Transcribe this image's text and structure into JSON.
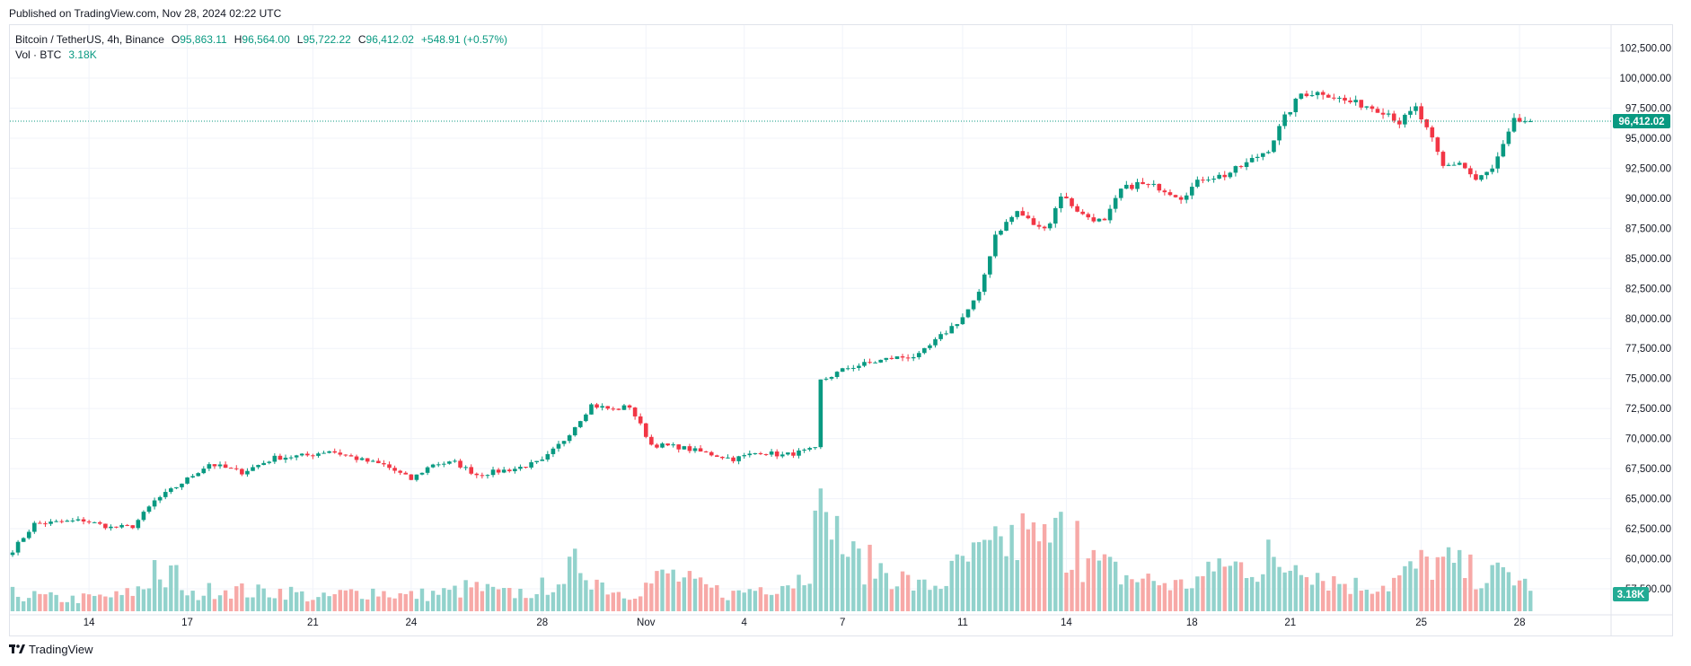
{
  "published": "Published on TradingView.com, Nov 28, 2024 02:22 UTC",
  "legend": {
    "symbol": "Bitcoin / TetherUS, 4h, Binance",
    "o_label": "O",
    "o_value": "95,863.11",
    "h_label": "H",
    "h_value": "96,564.00",
    "l_label": "L",
    "l_value": "95,722.22",
    "c_label": "C",
    "c_value": "96,412.02",
    "change": "+548.91 (+0.57%)",
    "vol_label": "Vol · BTC",
    "vol_value": "3.18K"
  },
  "footer": {
    "brand": "TradingView"
  },
  "colors": {
    "up": "#089981",
    "down": "#f23645",
    "vol_up": "#92d2cc",
    "vol_down": "#f7a9a7",
    "grid": "#f0f3fa"
  },
  "chart_data": {
    "type": "candlestick",
    "interval": "4h",
    "y_axis_ticks": [
      "102,500.00",
      "100,000.00",
      "97,500.00",
      "95,000.00",
      "92,500.00",
      "90,000.00",
      "87,500.00",
      "85,000.00",
      "82,500.00",
      "80,000.00",
      "77,500.00",
      "75,000.00",
      "72,500.00",
      "70,000.00",
      "67,500.00",
      "65,000.00",
      "62,500.00",
      "60,000.00",
      "57,500.00"
    ],
    "y_tick_values": [
      102500,
      100000,
      97500,
      95000,
      92500,
      90000,
      87500,
      85000,
      82500,
      80000,
      77500,
      75000,
      72500,
      70000,
      67500,
      65000,
      62500,
      60000,
      57500
    ],
    "ylim": [
      56500,
      104000
    ],
    "x_axis_ticks": [
      "14",
      "17",
      "21",
      "24",
      "28",
      "Nov",
      "4",
      "7",
      "11",
      "14",
      "18",
      "21",
      "25",
      "28"
    ],
    "x_tick_bars": [
      14,
      32,
      55,
      73,
      97,
      116,
      134,
      152,
      174,
      193,
      216,
      234,
      258,
      276
    ],
    "last_price_label": "96,412.02",
    "last_price": 96412.02,
    "last_volume_label": "3.18K",
    "price_anchors": [
      [
        0,
        60700
      ],
      [
        4,
        62900
      ],
      [
        13,
        63200
      ],
      [
        18,
        62600
      ],
      [
        22,
        62700
      ],
      [
        26,
        64800
      ],
      [
        30,
        66000
      ],
      [
        36,
        67900
      ],
      [
        42,
        67200
      ],
      [
        48,
        68400
      ],
      [
        54,
        68600
      ],
      [
        58,
        69000
      ],
      [
        64,
        68200
      ],
      [
        68,
        67800
      ],
      [
        73,
        66600
      ],
      [
        77,
        67900
      ],
      [
        81,
        68000
      ],
      [
        85,
        67000
      ],
      [
        92,
        67500
      ],
      [
        97,
        68100
      ],
      [
        101,
        69900
      ],
      [
        106,
        72800
      ],
      [
        110,
        72400
      ],
      [
        113,
        72700
      ],
      [
        117,
        69500
      ],
      [
        122,
        69300
      ],
      [
        127,
        68800
      ],
      [
        132,
        68300
      ],
      [
        137,
        68900
      ],
      [
        141,
        68600
      ],
      [
        147,
        69100
      ],
      [
        148,
        74800
      ],
      [
        153,
        75900
      ],
      [
        157,
        76300
      ],
      [
        161,
        76700
      ],
      [
        166,
        76900
      ],
      [
        170,
        78500
      ],
      [
        174,
        80100
      ],
      [
        177,
        82000
      ],
      [
        180,
        87000
      ],
      [
        184,
        88900
      ],
      [
        188,
        87500
      ],
      [
        190,
        88000
      ],
      [
        192,
        90300
      ],
      [
        196,
        88600
      ],
      [
        200,
        88000
      ],
      [
        203,
        90700
      ],
      [
        206,
        91200
      ],
      [
        210,
        90900
      ],
      [
        214,
        90100
      ],
      [
        218,
        91700
      ],
      [
        222,
        91900
      ],
      [
        226,
        92900
      ],
      [
        230,
        94100
      ],
      [
        233,
        96700
      ],
      [
        236,
        98700
      ],
      [
        240,
        98800
      ],
      [
        244,
        98100
      ],
      [
        248,
        97700
      ],
      [
        252,
        97100
      ],
      [
        254,
        96300
      ],
      [
        257,
        97500
      ],
      [
        260,
        94800
      ],
      [
        262,
        92600
      ],
      [
        265,
        93000
      ],
      [
        268,
        91500
      ],
      [
        271,
        92400
      ],
      [
        273,
        94300
      ],
      [
        275,
        96400
      ],
      [
        278,
        96412
      ]
    ],
    "volume_anchors": [
      [
        0,
        1.0
      ],
      [
        10,
        0.7
      ],
      [
        20,
        0.9
      ],
      [
        26,
        1.6
      ],
      [
        30,
        2.1
      ],
      [
        32,
        0.8
      ],
      [
        38,
        1.4
      ],
      [
        44,
        1.1
      ],
      [
        50,
        1.2
      ],
      [
        56,
        0.7
      ],
      [
        60,
        1.0
      ],
      [
        66,
        1.2
      ],
      [
        72,
        0.9
      ],
      [
        80,
        1.1
      ],
      [
        84,
        1.4
      ],
      [
        90,
        1.0
      ],
      [
        96,
        1.2
      ],
      [
        100,
        2.0
      ],
      [
        104,
        2.8
      ],
      [
        108,
        1.6
      ],
      [
        112,
        1.0
      ],
      [
        116,
        1.5
      ],
      [
        120,
        2.2
      ],
      [
        126,
        1.4
      ],
      [
        132,
        1.0
      ],
      [
        138,
        1.5
      ],
      [
        144,
        1.9
      ],
      [
        147,
        3.1
      ],
      [
        150,
        5.0
      ],
      [
        154,
        3.0
      ],
      [
        160,
        2.4
      ],
      [
        166,
        1.4
      ],
      [
        170,
        1.6
      ],
      [
        174,
        2.8
      ],
      [
        180,
        3.5
      ],
      [
        184,
        4.5
      ],
      [
        188,
        3.8
      ],
      [
        192,
        4.5
      ],
      [
        194,
        3.2
      ],
      [
        198,
        2.8
      ],
      [
        204,
        2.0
      ],
      [
        210,
        1.7
      ],
      [
        214,
        1.5
      ],
      [
        220,
        2.2
      ],
      [
        226,
        2.8
      ],
      [
        232,
        2.3
      ],
      [
        236,
        3.2
      ],
      [
        240,
        2.0
      ],
      [
        246,
        1.5
      ],
      [
        252,
        1.6
      ],
      [
        258,
        2.7
      ],
      [
        262,
        2.9
      ],
      [
        266,
        2.4
      ],
      [
        270,
        2.0
      ],
      [
        274,
        2.2
      ],
      [
        278,
        1.3
      ]
    ],
    "volume_spikes": [
      [
        26,
        3.0
      ],
      [
        96,
        1.0
      ],
      [
        101,
        1.6
      ],
      [
        147,
        5.9
      ],
      [
        148,
        7.2
      ],
      [
        150,
        4.2
      ],
      [
        184,
        3.0
      ],
      [
        186,
        4.8
      ],
      [
        188,
        4.1
      ],
      [
        195,
        5.3
      ],
      [
        221,
        3.1
      ],
      [
        230,
        4.2
      ],
      [
        262,
        3.2
      ]
    ],
    "volume_max": 8.0
  }
}
